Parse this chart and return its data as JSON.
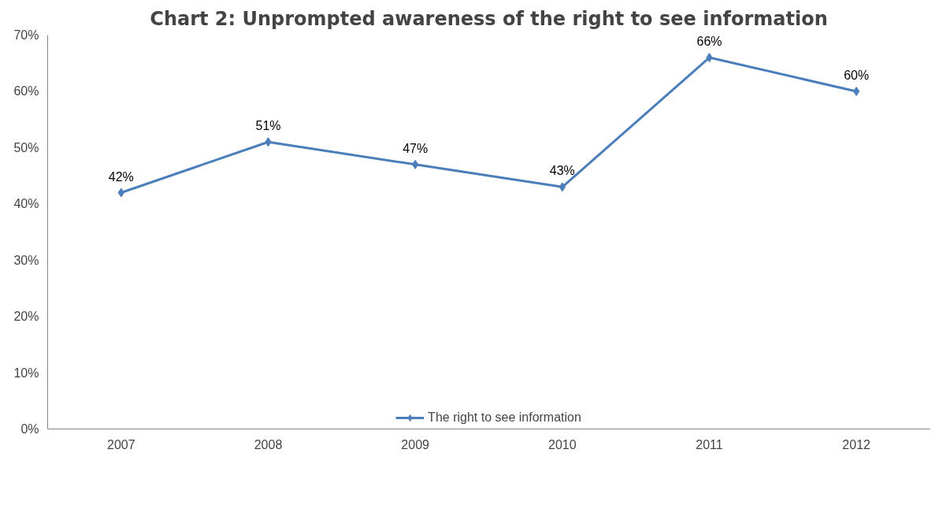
{
  "chart_data": {
    "type": "line",
    "title": "Chart 2: Unprompted awareness of the right to see information",
    "categories": [
      "2007",
      "2008",
      "2009",
      "2010",
      "2011",
      "2012"
    ],
    "series": [
      {
        "name": "The right to see information",
        "color": "#4a7ebb",
        "values": [
          42,
          51,
          47,
          43,
          66,
          60
        ],
        "value_labels": [
          "42%",
          "51%",
          "47%",
          "43%",
          "66%",
          "60%"
        ]
      }
    ],
    "ylim": [
      0,
      70
    ],
    "yticks": [
      {
        "value": 0,
        "label": "0%"
      },
      {
        "value": 10,
        "label": "10%"
      },
      {
        "value": 20,
        "label": "20%"
      },
      {
        "value": 30,
        "label": "30%"
      },
      {
        "value": 40,
        "label": "40%"
      },
      {
        "value": 50,
        "label": "50%"
      },
      {
        "value": 60,
        "label": "60%"
      },
      {
        "value": 70,
        "label": "70%"
      }
    ],
    "grid": false,
    "legend": "bottom",
    "marker": "diamond",
    "line_style": "solid"
  }
}
